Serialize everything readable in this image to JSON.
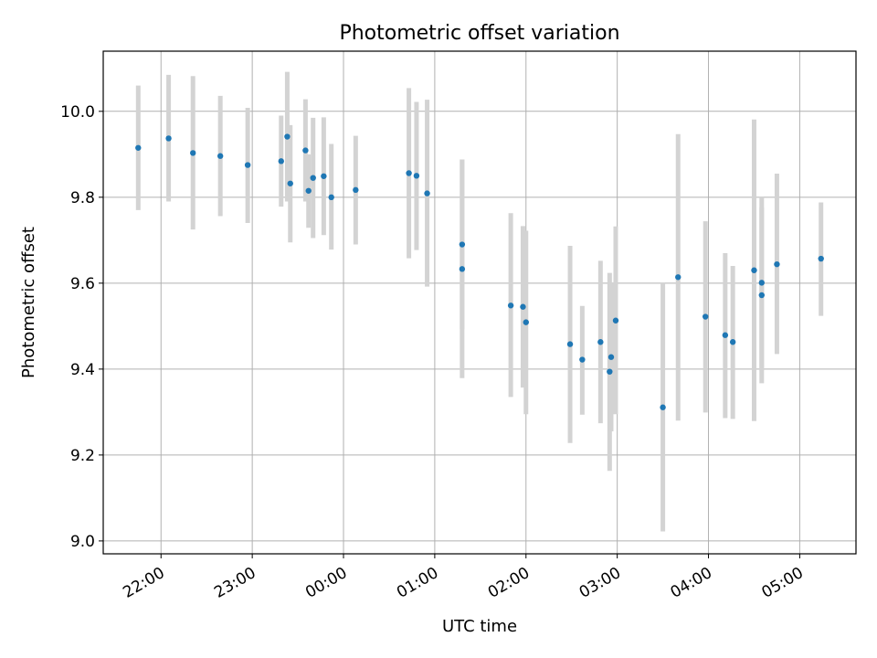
{
  "chart_data": {
    "type": "scatter",
    "title": "Photometric offset variation",
    "xlabel": "UTC time",
    "ylabel": "Photometric offset",
    "x_axis_kind": "time (hours after 21:00, spanning midnight)",
    "xlim": [
      "21:22",
      "05:37"
    ],
    "ylim": [
      8.97,
      10.14
    ],
    "x_ticks": [
      "22:00",
      "23:00",
      "00:00",
      "01:00",
      "02:00",
      "03:00",
      "04:00",
      "05:00"
    ],
    "y_ticks": [
      "9.0",
      "9.2",
      "9.4",
      "9.6",
      "9.8",
      "10.0"
    ],
    "grid": true,
    "marker_color": "#1f77b4",
    "errorbar_color": "#d3d3d3",
    "points": [
      {
        "t": "21:45",
        "y": 9.915,
        "lo": 9.77,
        "hi": 10.06
      },
      {
        "t": "22:05",
        "y": 9.937,
        "lo": 9.79,
        "hi": 10.085
      },
      {
        "t": "22:21",
        "y": 9.903,
        "lo": 9.725,
        "hi": 10.082
      },
      {
        "t": "22:39",
        "y": 9.896,
        "lo": 9.756,
        "hi": 10.036
      },
      {
        "t": "22:57",
        "y": 9.875,
        "lo": 9.74,
        "hi": 10.008
      },
      {
        "t": "23:19",
        "y": 9.884,
        "lo": 9.778,
        "hi": 9.99
      },
      {
        "t": "23:23",
        "y": 9.941,
        "lo": 9.79,
        "hi": 10.092
      },
      {
        "t": "23:25",
        "y": 9.832,
        "lo": 9.695,
        "hi": 9.968
      },
      {
        "t": "23:35",
        "y": 9.909,
        "lo": 9.79,
        "hi": 10.028
      },
      {
        "t": "23:37",
        "y": 9.815,
        "lo": 9.729,
        "hi": 9.9
      },
      {
        "t": "23:40",
        "y": 9.845,
        "lo": 9.705,
        "hi": 9.985
      },
      {
        "t": "23:47",
        "y": 9.849,
        "lo": 9.712,
        "hi": 9.986
      },
      {
        "t": "23:52",
        "y": 9.8,
        "lo": 9.678,
        "hi": 9.924
      },
      {
        "t": "00:08",
        "y": 9.817,
        "lo": 9.69,
        "hi": 9.943
      },
      {
        "t": "00:43",
        "y": 9.856,
        "lo": 9.658,
        "hi": 10.054
      },
      {
        "t": "00:48",
        "y": 9.85,
        "lo": 9.677,
        "hi": 10.022
      },
      {
        "t": "00:55",
        "y": 9.809,
        "lo": 9.592,
        "hi": 10.027
      },
      {
        "t": "01:18",
        "y": 9.69,
        "lo": 9.493,
        "hi": 9.888
      },
      {
        "t": "01:18",
        "y": 9.633,
        "lo": 9.379,
        "hi": 9.888
      },
      {
        "t": "01:50",
        "y": 9.548,
        "lo": 9.335,
        "hi": 9.763
      },
      {
        "t": "01:58",
        "y": 9.545,
        "lo": 9.357,
        "hi": 9.733
      },
      {
        "t": "02:00",
        "y": 9.509,
        "lo": 9.295,
        "hi": 9.722
      },
      {
        "t": "02:29",
        "y": 9.458,
        "lo": 9.228,
        "hi": 9.687
      },
      {
        "t": "02:37",
        "y": 9.422,
        "lo": 9.294,
        "hi": 9.547
      },
      {
        "t": "02:49",
        "y": 9.463,
        "lo": 9.274,
        "hi": 9.652
      },
      {
        "t": "02:55",
        "y": 9.394,
        "lo": 9.163,
        "hi": 9.624
      },
      {
        "t": "02:56",
        "y": 9.428,
        "lo": 9.255,
        "hi": 9.602
      },
      {
        "t": "02:59",
        "y": 9.513,
        "lo": 9.295,
        "hi": 9.732
      },
      {
        "t": "03:30",
        "y": 9.311,
        "lo": 9.022,
        "hi": 9.6
      },
      {
        "t": "03:40",
        "y": 9.614,
        "lo": 9.28,
        "hi": 9.947
      },
      {
        "t": "03:58",
        "y": 9.522,
        "lo": 9.299,
        "hi": 9.744
      },
      {
        "t": "04:11",
        "y": 9.479,
        "lo": 9.286,
        "hi": 9.67
      },
      {
        "t": "04:16",
        "y": 9.463,
        "lo": 9.284,
        "hi": 9.64
      },
      {
        "t": "04:30",
        "y": 9.63,
        "lo": 9.279,
        "hi": 9.981
      },
      {
        "t": "04:35",
        "y": 9.601,
        "lo": 9.397,
        "hi": 9.8
      },
      {
        "t": "04:35",
        "y": 9.572,
        "lo": 9.367,
        "hi": 9.776
      },
      {
        "t": "04:45",
        "y": 9.644,
        "lo": 9.435,
        "hi": 9.855
      },
      {
        "t": "05:14",
        "y": 9.657,
        "lo": 9.524,
        "hi": 9.788
      }
    ]
  }
}
